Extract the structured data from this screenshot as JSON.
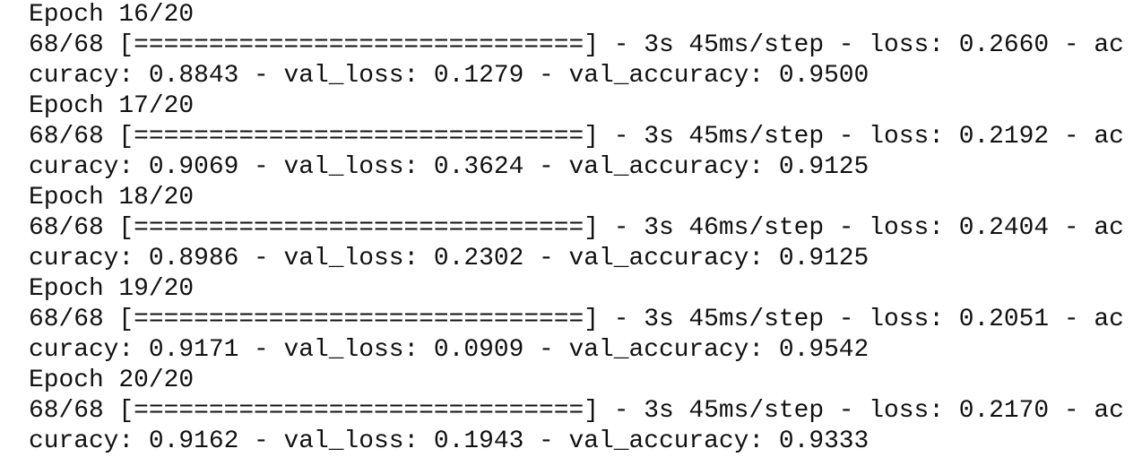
{
  "epochs": [
    {
      "header": "Epoch 16/20",
      "progress": "68/68 [==============================] - 3s 45ms/step - loss: 0.2660 - ac",
      "metrics": "curacy: 0.8843 - val_loss: 0.1279 - val_accuracy: 0.9500"
    },
    {
      "header": "Epoch 17/20",
      "progress": "68/68 [==============================] - 3s 45ms/step - loss: 0.2192 - ac",
      "metrics": "curacy: 0.9069 - val_loss: 0.3624 - val_accuracy: 0.9125"
    },
    {
      "header": "Epoch 18/20",
      "progress": "68/68 [==============================] - 3s 46ms/step - loss: 0.2404 - ac",
      "metrics": "curacy: 0.8986 - val_loss: 0.2302 - val_accuracy: 0.9125"
    },
    {
      "header": "Epoch 19/20",
      "progress": "68/68 [==============================] - 3s 45ms/step - loss: 0.2051 - ac",
      "metrics": "curacy: 0.9171 - val_loss: 0.0909 - val_accuracy: 0.9542"
    },
    {
      "header": "Epoch 20/20",
      "progress": "68/68 [==============================] - 3s 45ms/step - loss: 0.2170 - ac",
      "metrics": "curacy: 0.9162 - val_loss: 0.1943 - val_accuracy: 0.9333"
    }
  ]
}
